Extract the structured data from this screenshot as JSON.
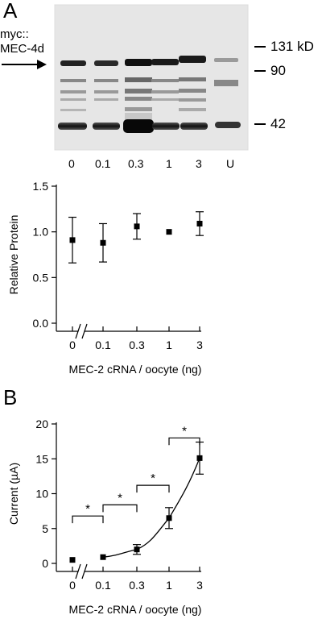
{
  "panel_a": {
    "letter": "A",
    "construct_label_line1": "myc::",
    "construct_label_line2": "MEC-4d",
    "markers": [
      "131 kD",
      "90",
      "42"
    ],
    "lanes": [
      "0",
      "0.1",
      "0.3",
      "1",
      "3",
      "U"
    ]
  },
  "panel_b": {
    "letter": "B"
  },
  "chart_data": [
    {
      "type": "scatter",
      "ylabel": "Relative Protein",
      "xlabel": "MEC-2 cRNA / oocyte (ng)",
      "x_ticks": [
        "0",
        "0.1",
        "0.3",
        "1",
        "3"
      ],
      "y_ticks": [
        "0.0",
        "0.5",
        "1.0",
        "1.5"
      ],
      "ylim": [
        0,
        1.5
      ],
      "axis_break": true,
      "points": [
        {
          "x": "0",
          "y": 0.91,
          "err": 0.25
        },
        {
          "x": "0.1",
          "y": 0.88,
          "err": 0.21
        },
        {
          "x": "0.3",
          "y": 1.06,
          "err": 0.14
        },
        {
          "x": "1",
          "y": 1.0,
          "err": 0
        },
        {
          "x": "3",
          "y": 1.09,
          "err": 0.13
        }
      ]
    },
    {
      "type": "scatter",
      "ylabel": "Current (µA)",
      "xlabel": "MEC-2 cRNA / oocyte (ng)",
      "x_ticks": [
        "0",
        "0.1",
        "0.3",
        "1",
        "3"
      ],
      "y_ticks": [
        "0",
        "5",
        "10",
        "15",
        "20"
      ],
      "ylim": [
        0,
        20
      ],
      "axis_break": true,
      "fit_line": true,
      "points": [
        {
          "x": "0",
          "y": 0.5,
          "err": 0
        },
        {
          "x": "0.1",
          "y": 0.9,
          "err": 0
        },
        {
          "x": "0.3",
          "y": 2.0,
          "err": 0.7
        },
        {
          "x": "1",
          "y": 6.5,
          "err": 1.5
        },
        {
          "x": "3",
          "y": 15.1,
          "err": 2.3
        }
      ],
      "significance": [
        {
          "from": "0",
          "to": "0.1",
          "label": "*"
        },
        {
          "from": "0.1",
          "to": "0.3",
          "label": "*"
        },
        {
          "from": "0.3",
          "to": "1",
          "label": "*"
        },
        {
          "from": "1",
          "to": "3",
          "label": "*"
        }
      ]
    }
  ]
}
